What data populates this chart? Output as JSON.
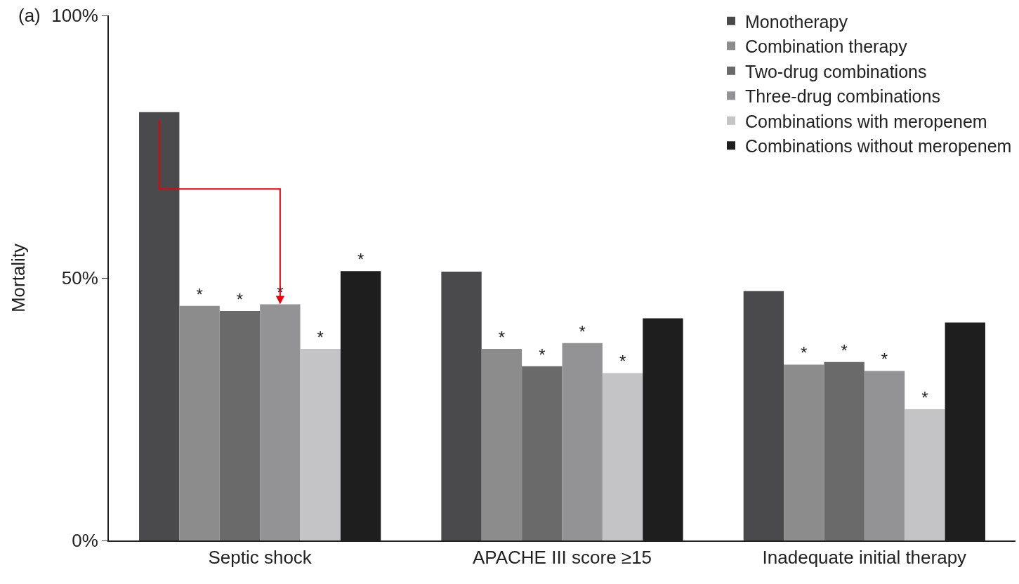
{
  "chart_data": {
    "type": "bar",
    "title": "(a)",
    "ylabel": "Mortality",
    "categories": [
      "Septic shock",
      "APACHE III score ≥15",
      "Inadequate initial therapy"
    ],
    "series": [
      {
        "name": "Monotherapy",
        "color": "#4a4a4c",
        "values": [
          81.6,
          51.2,
          47.5
        ]
      },
      {
        "name": "Combination therapy",
        "color": "#8c8c8c",
        "values": [
          44.7,
          36.5,
          33.5
        ],
        "value_labels": [
          "*",
          "*",
          "*"
        ]
      },
      {
        "name": "Two-drug combinations",
        "color": "#6a6a6a",
        "values": [
          43.7,
          33.2,
          34.0
        ],
        "value_labels": [
          "*",
          "*",
          "*"
        ]
      },
      {
        "name": "Three-drug combinations",
        "color": "#939396",
        "values": [
          45.0,
          37.6,
          32.3
        ],
        "value_labels": [
          "*",
          "*",
          "*"
        ]
      },
      {
        "name": "Combinations with meropenem",
        "color": "#c4c4c6",
        "values": [
          36.5,
          31.9,
          25.0
        ],
        "value_labels": [
          "*",
          "*",
          "*"
        ]
      },
      {
        "name": "Combinations without meropenem",
        "color": "#1e1e1e",
        "values": [
          51.3,
          42.3,
          41.5
        ],
        "value_labels": [
          "*",
          null,
          null
        ]
      }
    ],
    "ylim": [
      0,
      100
    ],
    "yticks": [
      {
        "value": 0,
        "label": "0%"
      },
      {
        "value": 50,
        "label": "50%"
      },
      {
        "value": 100,
        "label": "100%"
      }
    ],
    "legend": "top right"
  }
}
